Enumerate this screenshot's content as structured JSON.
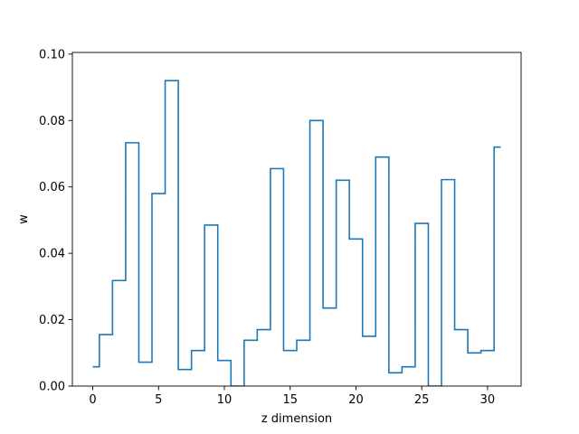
{
  "chart_data": {
    "type": "line",
    "drawstyle": "steps-mid",
    "title": "",
    "xlabel": "z dimension",
    "ylabel": "w",
    "xlim": [
      -1.55,
      32.55
    ],
    "ylim": [
      0.0,
      0.1005
    ],
    "xticks": [
      0,
      5,
      10,
      15,
      20,
      25,
      30
    ],
    "xtick_labels": [
      "0",
      "5",
      "10",
      "15",
      "20",
      "25",
      "30"
    ],
    "yticks": [
      0.0,
      0.02,
      0.04,
      0.06,
      0.08,
      0.1
    ],
    "ytick_labels": [
      "0.00",
      "0.02",
      "0.04",
      "0.06",
      "0.08",
      "0.10"
    ],
    "grid": false,
    "line_color": "#1f77b4",
    "series": [
      {
        "x": [
          0,
          1,
          2,
          3,
          4,
          5,
          6,
          7,
          8,
          9,
          10,
          11,
          12,
          13,
          14,
          15,
          16,
          17,
          18,
          19,
          20,
          21,
          22,
          23,
          24,
          25,
          26,
          27,
          28,
          29,
          30,
          31
        ],
        "values": [
          0.0058,
          0.0155,
          0.0318,
          0.0733,
          0.0072,
          0.058,
          0.092,
          0.005,
          0.0107,
          0.0485,
          0.0077,
          0.0,
          0.0138,
          0.017,
          0.0655,
          0.0107,
          0.0138,
          0.08,
          0.0235,
          0.062,
          0.0443,
          0.015,
          0.069,
          0.004,
          0.0058,
          0.049,
          0.0,
          0.0622,
          0.017,
          0.01,
          0.0107,
          0.072
        ]
      }
    ]
  }
}
